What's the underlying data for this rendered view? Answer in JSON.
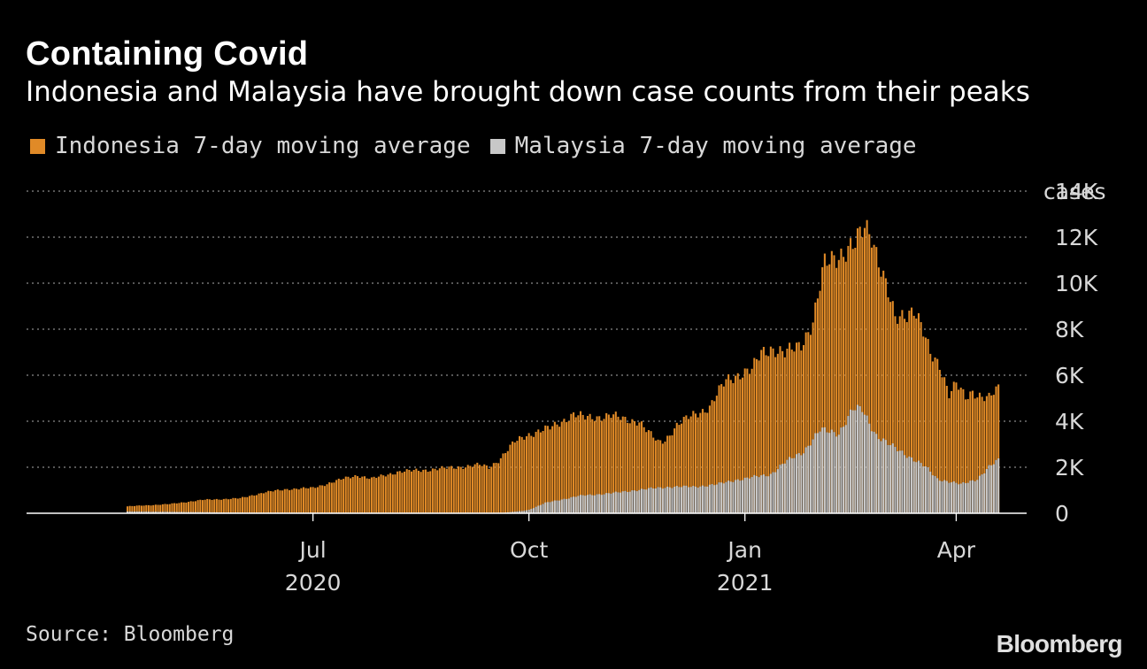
{
  "title": "Containing Covid",
  "subtitle": "Indonesia and Malaysia have brought down case counts from their peaks",
  "source": "Source: Bloomberg",
  "brand": "Bloomberg",
  "colors": {
    "indonesia": "#e08a27",
    "malaysia": "#c8c8c8",
    "background": "#000000",
    "grid": "#8a8a8a"
  },
  "chart_data": {
    "type": "bar",
    "stacked": false,
    "x_start": "2020-04-13",
    "x_end": "2021-04-19",
    "ylim": [
      0,
      14000
    ],
    "yticks": [
      0,
      2000,
      4000,
      6000,
      8000,
      10000,
      12000,
      14000
    ],
    "ytick_labels": [
      "0",
      "2K",
      "4K",
      "6K",
      "8K",
      "10K",
      "12K",
      "14K"
    ],
    "yunit_label": "cases",
    "xticks": [
      {
        "date": "2020-07-01",
        "label": "Jul",
        "sublabel": "2020"
      },
      {
        "date": "2020-10-01",
        "label": "Oct",
        "sublabel": ""
      },
      {
        "date": "2021-01-01",
        "label": "Jan",
        "sublabel": "2021"
      },
      {
        "date": "2021-04-01",
        "label": "Apr",
        "sublabel": ""
      }
    ],
    "grid": "horizontal dotted",
    "legend_position": "top-left",
    "series": [
      {
        "name": "Indonesia 7-day moving average",
        "points": [
          [
            "2020-04-13",
            300
          ],
          [
            "2020-05-01",
            400
          ],
          [
            "2020-05-15",
            580
          ],
          [
            "2020-05-31",
            650
          ],
          [
            "2020-06-10",
            900
          ],
          [
            "2020-06-20",
            1050
          ],
          [
            "2020-07-01",
            1100
          ],
          [
            "2020-07-14",
            1500
          ],
          [
            "2020-07-20",
            1650
          ],
          [
            "2020-07-26",
            1500
          ],
          [
            "2020-08-06",
            1800
          ],
          [
            "2020-08-20",
            1900
          ],
          [
            "2020-08-31",
            2000
          ],
          [
            "2020-09-10",
            2100
          ],
          [
            "2020-09-14",
            2000
          ],
          [
            "2020-09-18",
            2300
          ],
          [
            "2020-09-25",
            3100
          ],
          [
            "2020-09-30",
            3400
          ],
          [
            "2020-10-10",
            3700
          ],
          [
            "2020-10-20",
            4300
          ],
          [
            "2020-10-25",
            4150
          ],
          [
            "2020-11-05",
            4250
          ],
          [
            "2020-11-10",
            4100
          ],
          [
            "2020-11-17",
            4000
          ],
          [
            "2020-11-20",
            3600
          ],
          [
            "2020-11-25",
            3100
          ],
          [
            "2020-11-28",
            3200
          ],
          [
            "2020-12-03",
            3800
          ],
          [
            "2020-12-10",
            4300
          ],
          [
            "2020-12-17",
            4600
          ],
          [
            "2020-12-24",
            5800
          ],
          [
            "2020-12-28",
            6000
          ],
          [
            "2021-01-04",
            6200
          ],
          [
            "2021-01-08",
            7000
          ],
          [
            "2021-01-12",
            7200
          ],
          [
            "2021-01-18",
            6900
          ],
          [
            "2021-01-25",
            7400
          ],
          [
            "2021-01-30",
            8300
          ],
          [
            "2021-02-04",
            10800
          ],
          [
            "2021-02-08",
            11200
          ],
          [
            "2021-02-13",
            11400
          ],
          [
            "2021-02-17",
            11600
          ],
          [
            "2021-02-21",
            12500
          ],
          [
            "2021-02-24",
            12200
          ],
          [
            "2021-02-27",
            11000
          ],
          [
            "2021-03-03",
            9500
          ],
          [
            "2021-03-06",
            8400
          ],
          [
            "2021-03-10",
            8700
          ],
          [
            "2021-03-14",
            8900
          ],
          [
            "2021-03-17",
            8100
          ],
          [
            "2021-03-21",
            6900
          ],
          [
            "2021-03-25",
            6500
          ],
          [
            "2021-03-29",
            5200
          ],
          [
            "2021-04-01",
            5600
          ],
          [
            "2021-04-05",
            5000
          ],
          [
            "2021-04-08",
            5300
          ],
          [
            "2021-04-12",
            5100
          ],
          [
            "2021-04-15",
            5000
          ],
          [
            "2021-04-19",
            5400
          ]
        ]
      },
      {
        "name": "Malaysia 7-day moving average",
        "points": [
          [
            "2020-04-13",
            80
          ],
          [
            "2020-06-01",
            30
          ],
          [
            "2020-09-20",
            20
          ],
          [
            "2020-09-28",
            100
          ],
          [
            "2020-10-01",
            150
          ],
          [
            "2020-10-08",
            450
          ],
          [
            "2020-10-22",
            750
          ],
          [
            "2020-11-08",
            900
          ],
          [
            "2020-11-15",
            1000
          ],
          [
            "2020-11-30",
            1150
          ],
          [
            "2020-12-10",
            1150
          ],
          [
            "2020-12-20",
            1250
          ],
          [
            "2020-12-28",
            1450
          ],
          [
            "2021-01-01",
            1500
          ],
          [
            "2021-01-12",
            1700
          ],
          [
            "2021-01-18",
            2200
          ],
          [
            "2021-01-26",
            2700
          ],
          [
            "2021-02-02",
            3600
          ],
          [
            "2021-02-10",
            3500
          ],
          [
            "2021-02-16",
            4500
          ],
          [
            "2021-02-20",
            4500
          ],
          [
            "2021-02-26",
            3400
          ],
          [
            "2021-03-03",
            3000
          ],
          [
            "2021-03-10",
            2600
          ],
          [
            "2021-03-19",
            2000
          ],
          [
            "2021-03-24",
            1500
          ],
          [
            "2021-04-03",
            1250
          ],
          [
            "2021-04-10",
            1500
          ],
          [
            "2021-04-15",
            2000
          ],
          [
            "2021-04-19",
            2300
          ]
        ]
      }
    ]
  }
}
